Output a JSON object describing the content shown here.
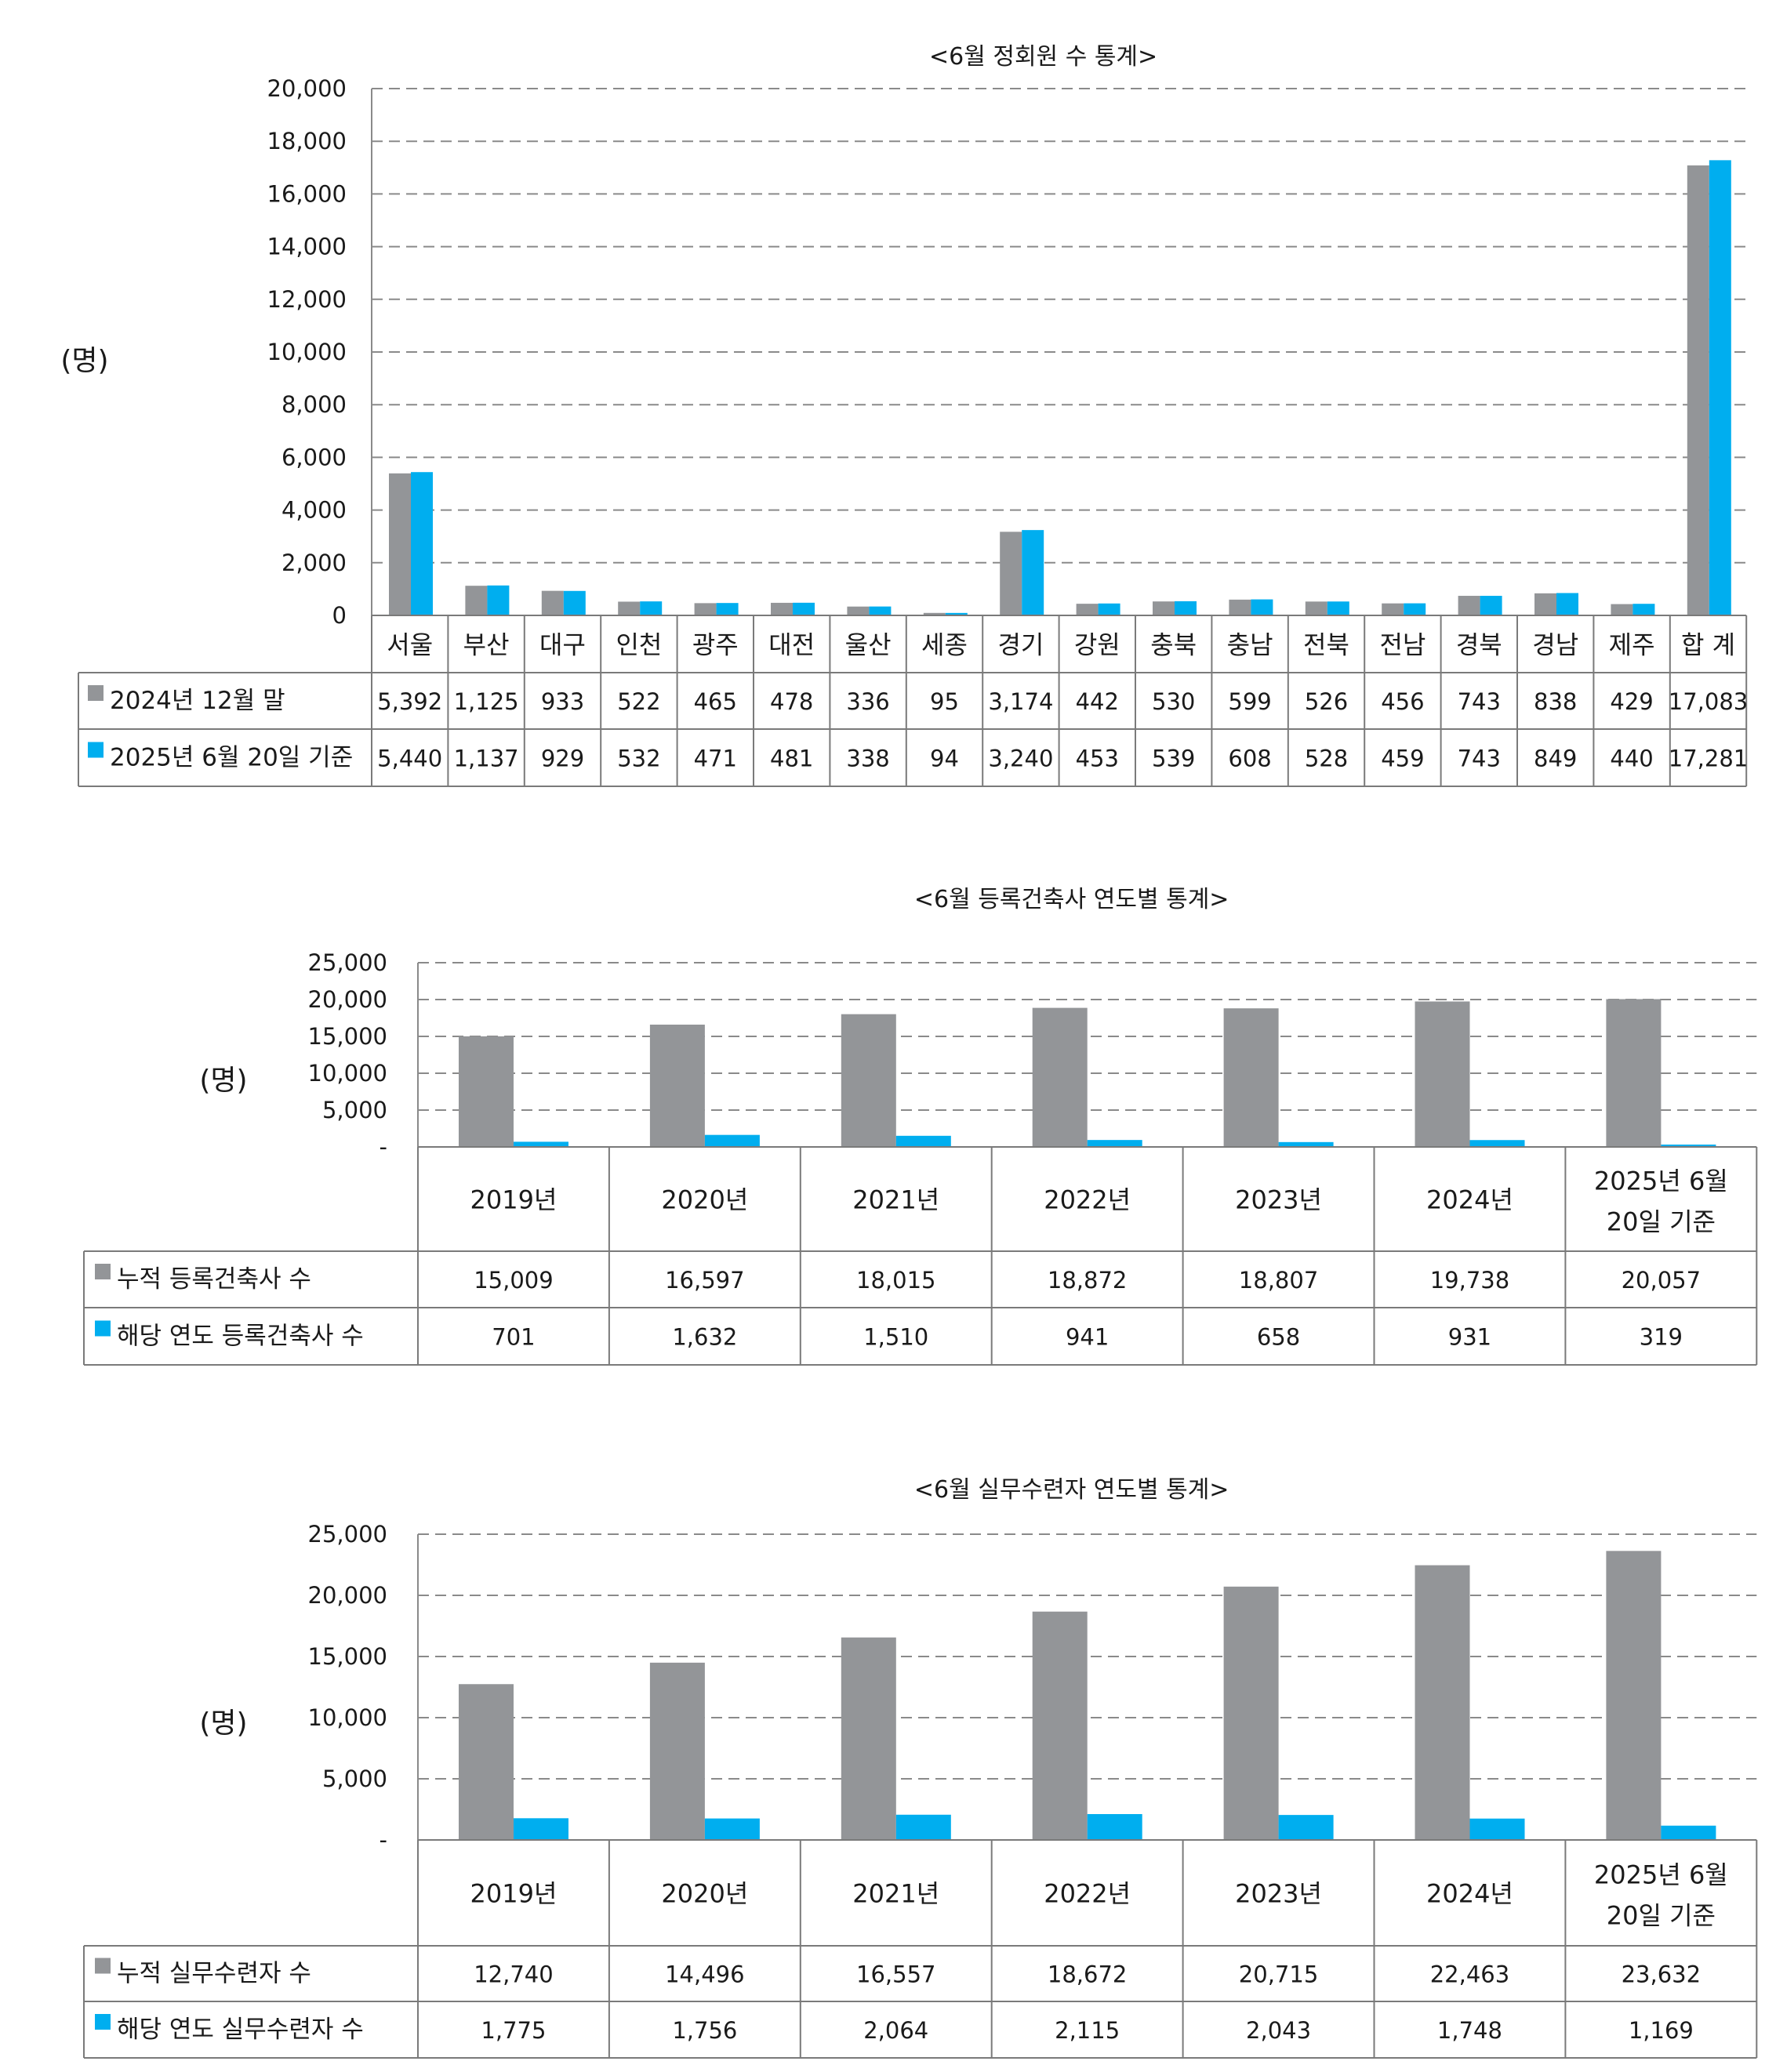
{
  "chart_data": [
    {
      "type": "bar",
      "title": "<6월 정회원 수 통계>",
      "ylabel": "(명)",
      "ylim": [
        0,
        20000
      ],
      "yticks": [
        "0",
        "2,000",
        "4,000",
        "6,000",
        "8,000",
        "10,000",
        "12,000",
        "14,000",
        "16,000",
        "18,000",
        "20,000"
      ],
      "grid": true,
      "categories": [
        "서울",
        "부산",
        "대구",
        "인천",
        "광주",
        "대전",
        "울산",
        "세종",
        "경기",
        "강원",
        "충북",
        "충남",
        "전북",
        "전남",
        "경북",
        "경남",
        "제주",
        "합 계"
      ],
      "series": [
        {
          "name": "2024년 12월 말",
          "color": "#939598",
          "values": [
            5392,
            1125,
            933,
            522,
            465,
            478,
            336,
            95,
            3174,
            442,
            530,
            599,
            526,
            456,
            743,
            838,
            429,
            17083
          ],
          "labels": [
            "5,392",
            "1,125",
            "933",
            "522",
            "465",
            "478",
            "336",
            "95",
            "3,174",
            "442",
            "530",
            "599",
            "526",
            "456",
            "743",
            "838",
            "429",
            "17,083"
          ]
        },
        {
          "name": "2025년 6월 20일 기준",
          "color": "#00aeef",
          "values": [
            5440,
            1137,
            929,
            532,
            471,
            481,
            338,
            94,
            3240,
            453,
            539,
            608,
            528,
            459,
            743,
            849,
            440,
            17281
          ],
          "labels": [
            "5,440",
            "1,137",
            "929",
            "532",
            "471",
            "481",
            "338",
            "94",
            "3,240",
            "453",
            "539",
            "608",
            "528",
            "459",
            "743",
            "849",
            "440",
            "17,281"
          ]
        }
      ]
    },
    {
      "type": "bar",
      "title": "<6월 등록건축사 연도별 통계>",
      "ylabel": "(명)",
      "ylim": [
        0,
        25000
      ],
      "yticks": [
        "-",
        "5,000",
        "10,000",
        "15,000",
        "20,000",
        "25,000"
      ],
      "grid": true,
      "categories": [
        "2019년",
        "2020년",
        "2021년",
        "2022년",
        "2023년",
        "2024년",
        "2025년 6월\n20일 기준"
      ],
      "series": [
        {
          "name": "누적 등록건축사 수",
          "color": "#939598",
          "values": [
            15009,
            16597,
            18015,
            18872,
            18807,
            19738,
            20057
          ],
          "labels": [
            "15,009",
            "16,597",
            "18,015",
            "18,872",
            "18,807",
            "19,738",
            "20,057"
          ]
        },
        {
          "name": "해당 연도 등록건축사 수",
          "color": "#00aeef",
          "values": [
            701,
            1632,
            1510,
            941,
            658,
            931,
            319
          ],
          "labels": [
            "701",
            "1,632",
            "1,510",
            "941",
            "658",
            "931",
            "319"
          ]
        }
      ]
    },
    {
      "type": "bar",
      "title": "<6월 실무수련자 연도별 통계>",
      "ylabel": "(명)",
      "ylim": [
        0,
        25000
      ],
      "yticks": [
        "-",
        "5,000",
        "10,000",
        "15,000",
        "20,000",
        "25,000"
      ],
      "grid": true,
      "categories": [
        "2019년",
        "2020년",
        "2021년",
        "2022년",
        "2023년",
        "2024년",
        "2025년 6월\n20일 기준"
      ],
      "series": [
        {
          "name": "누적 실무수련자 수",
          "color": "#939598",
          "values": [
            12740,
            14496,
            16557,
            18672,
            20715,
            22463,
            23632
          ],
          "labels": [
            "12,740",
            "14,496",
            "16,557",
            "18,672",
            "20,715",
            "22,463",
            "23,632"
          ]
        },
        {
          "name": "해당 연도 실무수련자 수",
          "color": "#00aeef",
          "values": [
            1775,
            1756,
            2064,
            2115,
            2043,
            1748,
            1169
          ],
          "labels": [
            "1,775",
            "1,756",
            "2,064",
            "2,115",
            "2,043",
            "1,748",
            "1,169"
          ]
        }
      ]
    }
  ]
}
